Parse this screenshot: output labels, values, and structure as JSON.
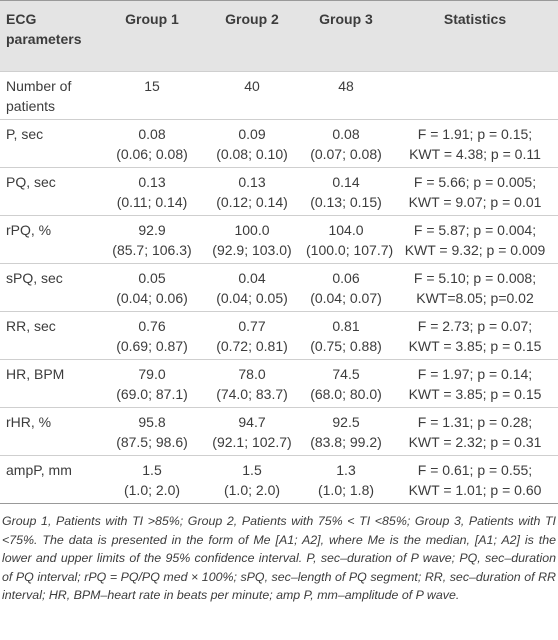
{
  "table": {
    "header": [
      "ECG parameters",
      "Group 1",
      "Group 2",
      "Group 3",
      "Statistics"
    ],
    "rows": [
      {
        "param": "Number of patients",
        "groups": [
          [
            "15"
          ],
          [
            "40"
          ],
          [
            "48"
          ]
        ],
        "stats": []
      },
      {
        "param": "P, sec",
        "groups": [
          [
            "0.08",
            "(0.06; 0.08)"
          ],
          [
            "0.09",
            "(0.08; 0.10)"
          ],
          [
            "0.08",
            "(0.07; 0.08)"
          ]
        ],
        "stats": [
          "F = 1.91; p = 0.15;",
          "KWT = 4.38; p = 0.11"
        ]
      },
      {
        "param": "PQ, sec",
        "groups": [
          [
            "0.13",
            "(0.11; 0.14)"
          ],
          [
            "0.13",
            "(0.12; 0.14)"
          ],
          [
            "0.14",
            "(0.13; 0.15)"
          ]
        ],
        "stats": [
          "F = 5.66; p = 0.005;",
          "KWT = 9.07; p = 0.01"
        ]
      },
      {
        "param": "rPQ, %",
        "groups": [
          [
            "92.9",
            "(85.7; 106.3)"
          ],
          [
            "100.0",
            "(92.9; 103.0)"
          ],
          [
            "104.0",
            "(100.0; 107.7)"
          ]
        ],
        "stats": [
          "F = 5.87; p = 0.004;",
          "KWT = 9.32; p = 0.009"
        ]
      },
      {
        "param": "sPQ, sec",
        "groups": [
          [
            "0.05",
            "(0.04; 0.06)"
          ],
          [
            "0.04",
            "(0.04; 0.05)"
          ],
          [
            "0.06",
            "(0.04; 0.07)"
          ]
        ],
        "stats": [
          "F = 5.10; p = 0.008;",
          "KWT=8.05; p=0.02"
        ]
      },
      {
        "param": "RR, sec",
        "groups": [
          [
            "0.76",
            "(0.69; 0.87)"
          ],
          [
            "0.77",
            "(0.72; 0.81)"
          ],
          [
            "0.81",
            "(0.75; 0.88)"
          ]
        ],
        "stats": [
          "F = 2.73; p = 0.07;",
          "KWT = 3.85; p = 0.15"
        ]
      },
      {
        "param": "HR, BPM",
        "groups": [
          [
            "79.0",
            "(69.0; 87.1)"
          ],
          [
            "78.0",
            "(74.0; 83.7)"
          ],
          [
            "74.5",
            "(68.0; 80.0)"
          ]
        ],
        "stats": [
          "F = 1.97; p = 0.14;",
          "KWT = 3.85; p = 0.15"
        ]
      },
      {
        "param": "rHR, %",
        "groups": [
          [
            "95.8",
            "(87.5; 98.6)"
          ],
          [
            "94.7",
            "(92.1; 102.7)"
          ],
          [
            "92.5",
            "(83.8; 99.2)"
          ]
        ],
        "stats": [
          "F = 1.31; p = 0.28;",
          "KWT = 2.32; p = 0.31"
        ]
      },
      {
        "param": "ampP, mm",
        "groups": [
          [
            "1.5",
            "(1.0; 2.0)"
          ],
          [
            "1.5",
            "(1.0; 2.0)"
          ],
          [
            "1.3",
            "(1.0; 1.8)"
          ]
        ],
        "stats": [
          "F = 0.61; p = 0.55;",
          "KWT = 1.01; p = 0.60"
        ]
      }
    ],
    "footnote": "Group 1, Patients with TI >85%; Group 2, Patients with 75% < TI <85%; Group 3, Patients with TI <75%. The data is presented in the form of Me [A1; A2], where Me is the median, [A1; A2] is the lower and upper limits of the 95% confidence interval. P, sec–duration of P wave; PQ, sec–duration of PQ interval; rPQ = PQ/PQ med × 100%; sPQ, sec–length of PQ segment; RR, sec–duration of RR interval; HR, BPM–heart rate in beats per minute; amp P, mm–amplitude of P wave."
  }
}
